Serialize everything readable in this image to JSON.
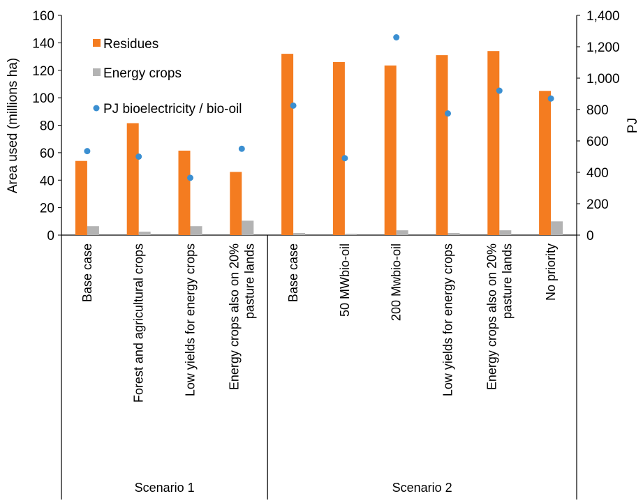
{
  "chart_data": {
    "type": "bar",
    "categories": [
      "Base case",
      "Forest and agricultural crops",
      "Low yields for energy crops",
      "Energy crops also on 20% pasture lands",
      "Base case",
      "50 MWbio-oil",
      "200 Mwbio-oil",
      "Low yields for energy crops",
      "Energy crops also on 20% pasture lands",
      "No priority"
    ],
    "groups": [
      {
        "label": "Scenario 1",
        "count": 4
      },
      {
        "label": "Scenario 2",
        "count": 6
      }
    ],
    "series": [
      {
        "name": "Residues",
        "axis": "left",
        "kind": "bar",
        "color": "#F47C20",
        "values": [
          54,
          81.5,
          61.5,
          46,
          132,
          126,
          123.5,
          131,
          134,
          105
        ]
      },
      {
        "name": "Energy crops",
        "axis": "left",
        "kind": "bar",
        "color": "#B3B3B3",
        "values": [
          6.5,
          2.5,
          6.5,
          10.5,
          1.5,
          1,
          3.5,
          1.5,
          3.5,
          10
        ]
      },
      {
        "name": "PJ bioelectricity / bio-oil",
        "axis": "right",
        "kind": "point",
        "color": "#3B8FD1",
        "values": [
          535,
          500,
          365,
          550,
          825,
          490,
          1260,
          775,
          920,
          870
        ]
      }
    ],
    "ylabel": "Area used (millions ha)",
    "ylabel_right": "PJ",
    "ylim": [
      0,
      160
    ],
    "ylim_right": [
      0,
      1400
    ],
    "yticks": [
      "0",
      "20",
      "40",
      "60",
      "80",
      "100",
      "120",
      "140",
      "160"
    ],
    "yticks_right": [
      "0",
      "200",
      "400",
      "600",
      "800",
      "1,000",
      "1,200",
      "1,400"
    ],
    "legend_position": "top-left",
    "grid": false
  }
}
